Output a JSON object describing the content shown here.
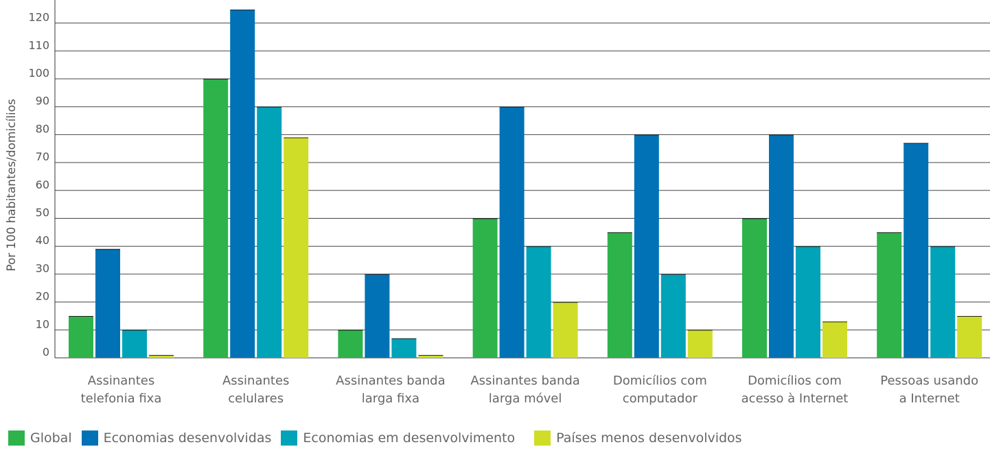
{
  "chart_data": {
    "type": "bar",
    "title": "",
    "xlabel": "",
    "ylabel": "Por 100 habitantes/domicílios",
    "ylim": [
      0,
      120
    ],
    "yticks": [
      0,
      10,
      20,
      30,
      40,
      50,
      60,
      70,
      80,
      90,
      100,
      110,
      120
    ],
    "grid": true,
    "legend_position": "bottom",
    "categories": [
      [
        "Assinantes",
        "telefonia fixa"
      ],
      [
        "Assinantes",
        "celulares"
      ],
      [
        "Assinantes banda",
        "larga fixa"
      ],
      [
        "Assinantes banda",
        "larga móvel"
      ],
      [
        "Domicílios com",
        "computador"
      ],
      [
        "Domicílios com",
        "acesso à Internet"
      ],
      [
        "Pessoas usando",
        "a Internet"
      ]
    ],
    "series": [
      {
        "name": "Global",
        "color": "#2db34a",
        "values": [
          15,
          100,
          10,
          50,
          45,
          50,
          45
        ]
      },
      {
        "name": "Economias desenvolvidas",
        "color": "#0072b5",
        "values": [
          39,
          125,
          30,
          90,
          80,
          80,
          77
        ]
      },
      {
        "name": "Economias em desenvolvimento",
        "color": "#00a3b8",
        "values": [
          10,
          90,
          7,
          40,
          30,
          40,
          40
        ]
      },
      {
        "name": "Países menos desenvolvidos",
        "color": "#cfdd28",
        "values": [
          1,
          79,
          1,
          20,
          10,
          13,
          15
        ]
      }
    ]
  }
}
